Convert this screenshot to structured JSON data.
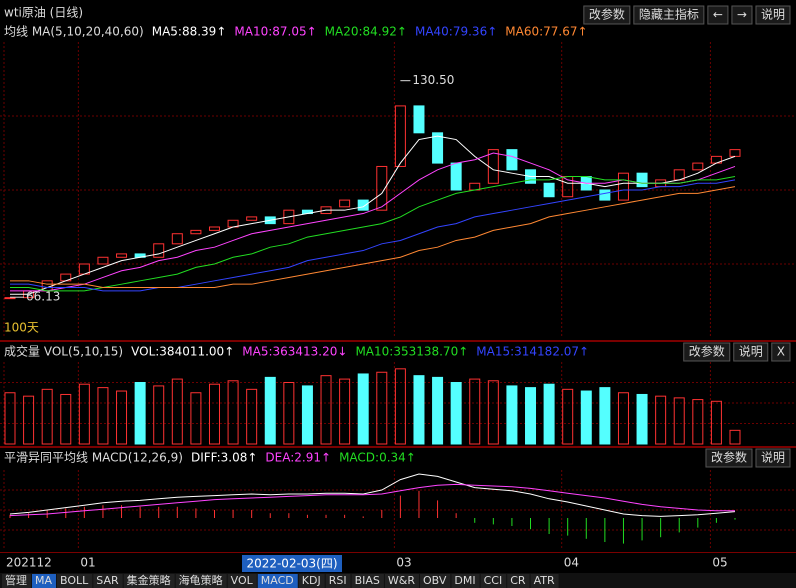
{
  "header": {
    "title": "wti原油 (日线)",
    "buttons": [
      "改参数",
      "隐藏主指标",
      "←",
      "→",
      "说明"
    ]
  },
  "price": {
    "label": "均线 MA(5,10,20,40,60)",
    "ylim": [
      54,
      142
    ],
    "high": {
      "value": 130.5,
      "label": "130.50"
    },
    "low": 66.13,
    "period": "100天",
    "closes": [
      66,
      68,
      71,
      73,
      76,
      78,
      79,
      78,
      82,
      85,
      86,
      87,
      89,
      90,
      88,
      92,
      91,
      93,
      95,
      92,
      105,
      123,
      115,
      106,
      98,
      100,
      110,
      104,
      100,
      96,
      102,
      98,
      95,
      103,
      99,
      101,
      104,
      106,
      108,
      110
    ],
    "ma": [
      {
        "legend": "MA5:88.39↑",
        "color": "#ffffff",
        "values": [
          67,
          67,
          69,
          71,
          73,
          75,
          77,
          78,
          79,
          81,
          83,
          85,
          87,
          88,
          89,
          90,
          91,
          92,
          92,
          93,
          97,
          106,
          113,
          114,
          113,
          108,
          104,
          103,
          102,
          102,
          100,
          100,
          99,
          100,
          100,
          100,
          101,
          103,
          106,
          108
        ]
      },
      {
        "legend": "MA10:87.05↑",
        "color": "#ff44ff",
        "values": [
          68,
          68,
          68,
          69,
          70,
          72,
          74,
          75,
          77,
          78,
          80,
          81,
          83,
          85,
          86,
          87,
          88,
          89,
          90,
          91,
          93,
          97,
          101,
          104,
          106,
          107,
          109,
          108,
          106,
          104,
          101,
          100,
          100,
          101,
          100,
          100,
          100,
          101,
          103,
          105
        ]
      },
      {
        "legend": "MA20:84.92↑",
        "color": "#22dd22",
        "values": [
          69,
          69,
          68,
          68,
          68,
          69,
          70,
          71,
          72,
          73,
          75,
          76,
          78,
          79,
          81,
          82,
          84,
          85,
          86,
          87,
          88,
          90,
          93,
          95,
          97,
          98,
          99,
          100,
          101,
          101,
          102,
          102,
          101,
          101,
          100,
          100,
          100,
          101,
          101,
          102
        ]
      },
      {
        "legend": "MA40:79.36↑",
        "color": "#3344ff",
        "values": [
          70,
          70,
          69,
          69,
          69,
          68,
          68,
          68,
          69,
          69,
          70,
          71,
          72,
          73,
          74,
          75,
          77,
          78,
          79,
          80,
          82,
          83,
          85,
          87,
          88,
          90,
          91,
          92,
          93,
          94,
          95,
          96,
          97,
          98,
          98,
          99,
          99,
          100,
          100,
          101
        ]
      },
      {
        "legend": "MA60:77.67↑",
        "color": "#ff8833",
        "values": [
          71,
          71,
          70,
          70,
          70,
          69,
          69,
          69,
          69,
          69,
          69,
          69,
          70,
          70,
          71,
          72,
          73,
          74,
          75,
          76,
          77,
          78,
          80,
          81,
          83,
          84,
          86,
          87,
          88,
          90,
          91,
          92,
          93,
          94,
          95,
          96,
          97,
          97,
          98,
          99
        ]
      }
    ]
  },
  "volume": {
    "label": "成交量 VOL(5,10,15)",
    "buttons": [
      "改参数",
      "说明",
      "X"
    ],
    "ylim": [
      0,
      480000
    ],
    "legend": [
      {
        "text": "VOL:384011.00↑",
        "color": "#ffffff"
      },
      {
        "text": "MA5:363413.20↓",
        "color": "#ff44ff"
      },
      {
        "text": "MA10:353138.70↑",
        "color": "#22dd22"
      },
      {
        "text": "MA15:314182.07↑",
        "color": "#3344ff"
      }
    ],
    "values": [
      300000,
      280000,
      320000,
      290000,
      350000,
      330000,
      310000,
      360000,
      340000,
      380000,
      300000,
      350000,
      370000,
      320000,
      390000,
      360000,
      340000,
      400000,
      380000,
      410000,
      420000,
      440000,
      400000,
      390000,
      360000,
      380000,
      370000,
      340000,
      330000,
      350000,
      320000,
      310000,
      330000,
      300000,
      290000,
      280000,
      270000,
      260000,
      250000,
      80000
    ]
  },
  "macd": {
    "label": "平滑异同平均线 MACD(12,26,9)",
    "buttons": [
      "改参数",
      "说明"
    ],
    "ylim": [
      -4,
      6
    ],
    "legend": [
      {
        "text": "DIFF:3.08↑",
        "color": "#ffffff"
      },
      {
        "text": "DEA:2.91↑",
        "color": "#ff44ff"
      },
      {
        "text": "MACD:0.34↑",
        "color": "#22dd22"
      }
    ],
    "diff": [
      0.5,
      0.7,
      1.0,
      1.3,
      1.6,
      1.9,
      2.1,
      2.2,
      2.4,
      2.6,
      2.7,
      2.8,
      2.9,
      3.0,
      2.9,
      3.0,
      3.0,
      3.1,
      3.1,
      3.0,
      3.5,
      4.8,
      5.5,
      5.2,
      4.5,
      3.8,
      3.6,
      3.4,
      3.0,
      2.4,
      2.0,
      1.5,
      1.0,
      0.5,
      0.3,
      0.2,
      0.3,
      0.4,
      0.6,
      0.8
    ],
    "dea": [
      0.3,
      0.4,
      0.5,
      0.7,
      0.9,
      1.1,
      1.3,
      1.5,
      1.7,
      1.9,
      2.1,
      2.3,
      2.4,
      2.5,
      2.6,
      2.7,
      2.8,
      2.9,
      2.9,
      2.9,
      3.0,
      3.4,
      3.8,
      4.1,
      4.2,
      4.1,
      4.0,
      3.9,
      3.7,
      3.4,
      3.1,
      2.8,
      2.5,
      2.1,
      1.7,
      1.4,
      1.2,
      1.0,
      0.9,
      0.9
    ],
    "values": [
      0.4,
      0.6,
      1.0,
      1.2,
      1.4,
      1.6,
      1.6,
      1.4,
      1.4,
      1.4,
      1.2,
      1.0,
      1.0,
      1.0,
      0.6,
      0.6,
      0.4,
      0.4,
      0.4,
      0.2,
      1.0,
      2.8,
      3.4,
      2.2,
      0.6,
      -0.6,
      -0.8,
      -1.0,
      -1.4,
      -2.0,
      -2.2,
      -2.6,
      -3.0,
      -3.2,
      -2.8,
      -2.4,
      -1.8,
      -1.2,
      -0.6,
      -0.2
    ]
  },
  "x_axis": {
    "categories": [
      "202112",
      null,
      null,
      null,
      "01",
      null,
      null,
      null,
      null,
      null,
      null,
      null,
      null,
      null,
      null,
      null,
      null,
      null,
      null,
      null,
      null,
      "03",
      null,
      null,
      null,
      null,
      null,
      null,
      null,
      null,
      "04",
      null,
      null,
      null,
      null,
      null,
      null,
      null,
      "05",
      null
    ],
    "cursor": "2022-02-03(四)"
  },
  "tabs": [
    "管理",
    "MA",
    "BOLL",
    "SAR",
    "集金策略",
    "海龟策略",
    "VOL",
    "MACD",
    "KDJ",
    "RSI",
    "BIAS",
    "W&R",
    "OBV",
    "DMI",
    "CCI",
    "CR",
    "ATR"
  ]
}
